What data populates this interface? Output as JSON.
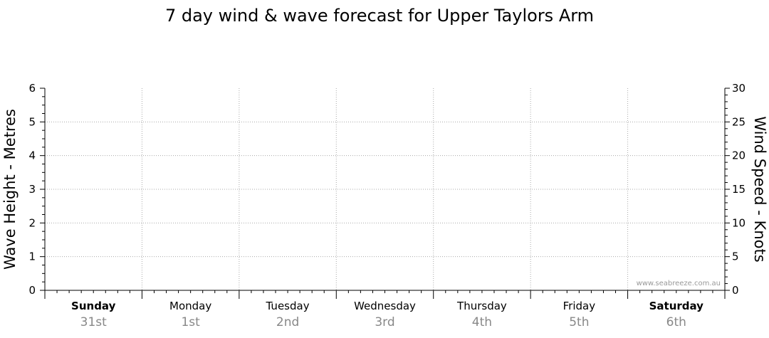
{
  "chart_data": {
    "type": "line",
    "title": "7 day wind & wave forecast for Upper Taylors Arm",
    "ylabel_left": "Wave Height - Metres",
    "ylabel_right": "Wind Speed - Knots",
    "ylim_left": [
      0,
      6
    ],
    "ylim_right": [
      0,
      30
    ],
    "yticks_left": [
      "0",
      "1",
      "2",
      "3",
      "4",
      "5",
      "6"
    ],
    "yticks_right": [
      "0",
      "5",
      "10",
      "15",
      "20",
      "25",
      "30"
    ],
    "grid": true,
    "days": [
      {
        "name": "Sunday",
        "date": "31st",
        "bold": true
      },
      {
        "name": "Monday",
        "date": "1st",
        "bold": false
      },
      {
        "name": "Tuesday",
        "date": "2nd",
        "bold": false
      },
      {
        "name": "Wednesday",
        "date": "3rd",
        "bold": false
      },
      {
        "name": "Thursday",
        "date": "4th",
        "bold": false
      },
      {
        "name": "Friday",
        "date": "5th",
        "bold": false
      },
      {
        "name": "Saturday",
        "date": "6th",
        "bold": true
      }
    ],
    "series": [],
    "watermark": "www.seabreeze.com.au"
  }
}
